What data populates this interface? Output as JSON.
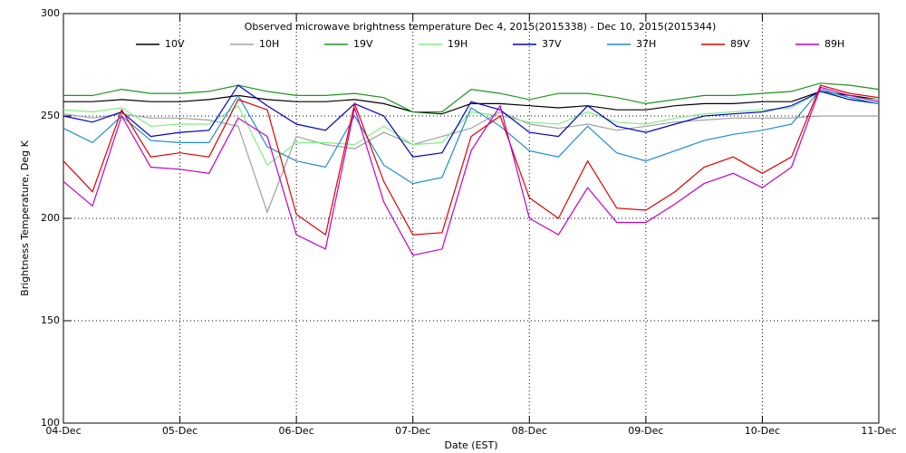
{
  "chart_data": {
    "type": "line",
    "title": "Observed microwave brightness temperature Dec  4, 2015(2015338) - Dec 10, 2015(2015344)",
    "xlabel": "Date (EST)",
    "ylabel": "Brightness Temperature, Deg K",
    "x": [
      4,
      4.25,
      4.5,
      4.75,
      5,
      5.25,
      5.5,
      5.75,
      6,
      6.25,
      6.5,
      6.75,
      7,
      7.25,
      7.5,
      7.75,
      8,
      8.25,
      8.5,
      8.75,
      9,
      9.25,
      9.5,
      9.75,
      10,
      10.25,
      10.5,
      10.75,
      11
    ],
    "xlim": [
      4,
      11
    ],
    "xticks": [
      {
        "value": 4,
        "label": "04-Dec"
      },
      {
        "value": 5,
        "label": "05-Dec"
      },
      {
        "value": 6,
        "label": "06-Dec"
      },
      {
        "value": 7,
        "label": "07-Dec"
      },
      {
        "value": 8,
        "label": "08-Dec"
      },
      {
        "value": 9,
        "label": "09-Dec"
      },
      {
        "value": 10,
        "label": "10-Dec"
      },
      {
        "value": 11,
        "label": "11-Dec"
      }
    ],
    "ylim": [
      100,
      300
    ],
    "yticks": [
      100,
      150,
      200,
      250,
      300
    ],
    "grid": true,
    "series": [
      {
        "name": "10V",
        "color": "#000000",
        "values": [
          257,
          257,
          258,
          257,
          257,
          258,
          260,
          258,
          257,
          257,
          258,
          256,
          252,
          251,
          256,
          256,
          255,
          254,
          255,
          253,
          253,
          255,
          256,
          256,
          257,
          257,
          262,
          260,
          258
        ]
      },
      {
        "name": "10H",
        "color": "#a0a0a0",
        "values": [
          251,
          249,
          251,
          249,
          249,
          248,
          245,
          203,
          240,
          236,
          234,
          242,
          236,
          240,
          244,
          252,
          246,
          244,
          246,
          243,
          245,
          247,
          248,
          249,
          249,
          249,
          250,
          250,
          250
        ]
      },
      {
        "name": "19V",
        "color": "#1a961a",
        "values": [
          260,
          260,
          263,
          261,
          261,
          262,
          265,
          262,
          260,
          260,
          261,
          259,
          252,
          252,
          263,
          261,
          258,
          261,
          261,
          259,
          256,
          258,
          260,
          260,
          261,
          262,
          266,
          265,
          263
        ]
      },
      {
        "name": "19H",
        "color": "#80f080",
        "values": [
          253,
          252,
          254,
          245,
          246,
          246,
          255,
          226,
          237,
          237,
          236,
          245,
          236,
          237,
          252,
          250,
          247,
          246,
          252,
          247,
          246,
          249,
          251,
          252,
          253,
          254,
          262,
          259,
          258
        ]
      },
      {
        "name": "37V",
        "color": "#0000c8",
        "values": [
          250,
          247,
          252,
          240,
          242,
          243,
          265,
          255,
          246,
          243,
          256,
          250,
          230,
          232,
          257,
          253,
          242,
          240,
          255,
          245,
          242,
          246,
          250,
          251,
          252,
          255,
          262,
          258,
          256
        ]
      },
      {
        "name": "37H",
        "color": "#1e8cd2",
        "values": [
          244,
          237,
          250,
          238,
          237,
          237,
          260,
          235,
          228,
          225,
          250,
          226,
          217,
          220,
          254,
          245,
          233,
          230,
          245,
          232,
          228,
          233,
          238,
          241,
          243,
          246,
          263,
          259,
          256
        ]
      },
      {
        "name": "89V",
        "color": "#e00000",
        "values": [
          228,
          213,
          253,
          230,
          232,
          230,
          258,
          253,
          202,
          192,
          256,
          218,
          192,
          193,
          240,
          250,
          210,
          200,
          228,
          205,
          204,
          213,
          225,
          230,
          222,
          230,
          265,
          261,
          259
        ]
      },
      {
        "name": "89H",
        "color": "#c000c8",
        "values": [
          218,
          206,
          250,
          225,
          224,
          222,
          249,
          240,
          192,
          185,
          254,
          208,
          182,
          185,
          233,
          255,
          200,
          192,
          215,
          198,
          198,
          207,
          217,
          222,
          215,
          225,
          264,
          260,
          257
        ]
      }
    ]
  }
}
